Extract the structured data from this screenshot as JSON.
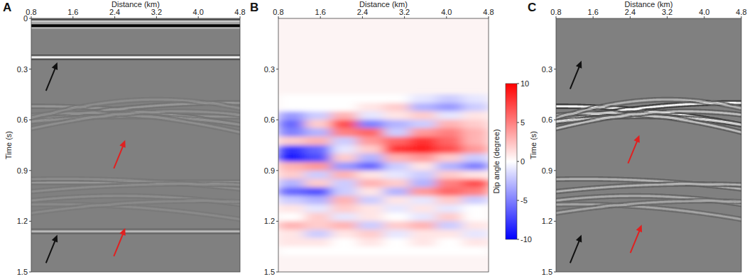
{
  "chart_data": [
    {
      "type": "seismic",
      "panel_label": "A",
      "x_label": "Distance (km)",
      "y_label": "Time (s)",
      "xlim": [
        0.8,
        4.8
      ],
      "xticks": [
        0.8,
        1.6,
        2.4,
        3.2,
        {
          "value": 4,
          "label": "4.0"
        },
        4.8
      ],
      "ylim": [
        0,
        1.5
      ],
      "yticks": [
        0,
        0.3,
        0.6,
        0.9,
        1.2,
        1.5
      ],
      "reflectors": [
        {
          "t": 0.02,
          "amplitude": 1.0
        },
        {
          "t": 0.035,
          "amplitude": -1.0
        },
        {
          "t": 0.045,
          "amplitude": -1.0
        },
        {
          "t": 0.23,
          "amplitude": 0.9
        },
        {
          "t": 0.58,
          "amplitude": 0.15
        },
        {
          "t": 0.97,
          "amplitude": 0.2
        },
        {
          "t": 1.26,
          "amplitude": 0.45
        }
      ],
      "diffractions": [
        {
          "x0": 0.9,
          "t0": 0.52,
          "v": 22,
          "amplitude": 0.18
        },
        {
          "x0": 4.6,
          "t0": 0.5,
          "v": 22,
          "amplitude": 0.18
        },
        {
          "x0": 2.6,
          "t0": 0.58,
          "v": 18,
          "amplitude": 0.12
        },
        {
          "x0": 1.8,
          "t0": 0.56,
          "v": 16,
          "amplitude": 0.12
        },
        {
          "x0": 3.6,
          "t0": 0.55,
          "v": 16,
          "amplitude": 0.12
        },
        {
          "x0": 3.2,
          "t0": 0.48,
          "v": 14,
          "amplitude": 0.1
        },
        {
          "x0": 1.4,
          "t0": 0.95,
          "v": 20,
          "amplitude": 0.1
        },
        {
          "x0": 3.8,
          "t0": 0.98,
          "v": 20,
          "amplitude": 0.1
        },
        {
          "x0": 2.5,
          "t0": 1.05,
          "v": 14,
          "amplitude": 0.1
        },
        {
          "x0": 1.2,
          "t0": 1.1,
          "v": 16,
          "amplitude": 0.08
        },
        {
          "x0": 4.0,
          "t0": 1.08,
          "v": 16,
          "amplitude": 0.08
        }
      ],
      "annotations": [
        {
          "x": 1.3,
          "y": 0.26,
          "color": "#111111"
        },
        {
          "x": 2.6,
          "y": 0.72,
          "color": "#e02020"
        },
        {
          "x": 1.3,
          "y": 1.28,
          "color": "#111111"
        },
        {
          "x": 2.6,
          "y": 1.24,
          "color": "#e02020"
        }
      ]
    },
    {
      "type": "heatmap",
      "panel_label": "B",
      "x_label": "Distance (km)",
      "xlim": [
        0.8,
        4.8
      ],
      "xticks": [
        0.8,
        1.6,
        2.4,
        3.2,
        {
          "value": 4,
          "label": "4.0"
        },
        4.8
      ],
      "ylim": [
        0,
        1.5
      ],
      "yticks": [
        0.3,
        0.6,
        0.9,
        1.2,
        1.5
      ],
      "cells": {
        "x_edges": [
          0.8,
          1.3,
          1.8,
          2.3,
          2.8,
          3.3,
          3.8,
          4.3,
          4.8
        ],
        "t_edges": [
          0.45,
          0.5,
          0.55,
          0.6,
          0.65,
          0.7,
          0.75,
          0.8,
          0.85,
          0.9,
          0.95,
          1.0,
          1.05,
          1.1,
          1.15,
          1.2,
          1.25,
          1.3,
          1.35,
          1.4
        ],
        "values": [
          [
            0,
            0,
            0,
            0,
            0,
            -1,
            -2,
            -1
          ],
          [
            0,
            0,
            0,
            1,
            2,
            -3,
            -4,
            -2
          ],
          [
            -4,
            -2,
            3,
            -1,
            1,
            2,
            -1,
            1
          ],
          [
            -6,
            2,
            7,
            -5,
            -3,
            -2,
            3,
            2
          ],
          [
            -5,
            -3,
            5,
            6,
            -2,
            4,
            5,
            3
          ],
          [
            2,
            3,
            -2,
            4,
            6,
            8,
            6,
            3
          ],
          [
            -8,
            -6,
            -1,
            2,
            8,
            9,
            7,
            4
          ],
          [
            -9,
            -7,
            2,
            -3,
            3,
            4,
            2,
            -2
          ],
          [
            3,
            4,
            -4,
            -6,
            -2,
            1,
            -3,
            -5
          ],
          [
            2,
            -2,
            3,
            1,
            -1,
            -2,
            2,
            1
          ],
          [
            -3,
            2,
            -2,
            3,
            2,
            -3,
            5,
            7
          ],
          [
            -6,
            -7,
            -2,
            1,
            -3,
            4,
            6,
            5
          ],
          [
            -2,
            -3,
            3,
            -2,
            1,
            -1,
            2,
            -2
          ],
          [
            1,
            -1,
            2,
            1,
            -1,
            1,
            -1,
            0
          ],
          [
            0,
            2,
            -1,
            1,
            0,
            -1,
            2,
            0
          ],
          [
            3,
            2,
            3,
            -2,
            2,
            3,
            -2,
            1
          ],
          [
            1,
            -2,
            1,
            2,
            -1,
            1,
            1,
            -1
          ],
          [
            1,
            1,
            0,
            1,
            0,
            1,
            0,
            1
          ],
          [
            0,
            0,
            0,
            0,
            0,
            0,
            0,
            0
          ]
        ]
      },
      "colorbar": {
        "label": "Dip angle (degree)",
        "range": [
          -10,
          10
        ],
        "ticks": [
          -10,
          -5,
          0,
          5,
          10
        ]
      }
    },
    {
      "type": "seismic",
      "panel_label": "C",
      "x_label": "Distance (km)",
      "y_label": "Time (s)",
      "xlim": [
        0.8,
        4.8
      ],
      "xticks": [
        0.8,
        1.6,
        2.4,
        3.2,
        {
          "value": 4,
          "label": "4.0"
        },
        4.8
      ],
      "ylim": [
        0,
        1.5
      ],
      "yticks": [
        0.3,
        0.6,
        0.9,
        1.2,
        1.5
      ],
      "reflectors": [],
      "diffractions": [
        {
          "x0": 0.9,
          "t0": 0.52,
          "v": 22,
          "amplitude": 0.95
        },
        {
          "x0": 4.6,
          "t0": 0.5,
          "v": 22,
          "amplitude": 0.95
        },
        {
          "x0": 2.6,
          "t0": 0.58,
          "v": 18,
          "amplitude": 0.6
        },
        {
          "x0": 1.8,
          "t0": 0.56,
          "v": 16,
          "amplitude": 0.5
        },
        {
          "x0": 3.6,
          "t0": 0.55,
          "v": 16,
          "amplitude": 0.5
        },
        {
          "x0": 3.2,
          "t0": 0.48,
          "v": 14,
          "amplitude": 0.4
        },
        {
          "x0": 1.4,
          "t0": 0.95,
          "v": 20,
          "amplitude": 0.4
        },
        {
          "x0": 3.8,
          "t0": 0.98,
          "v": 20,
          "amplitude": 0.4
        },
        {
          "x0": 2.5,
          "t0": 1.05,
          "v": 14,
          "amplitude": 0.35
        },
        {
          "x0": 1.2,
          "t0": 1.1,
          "v": 16,
          "amplitude": 0.3
        },
        {
          "x0": 4.0,
          "t0": 1.08,
          "v": 16,
          "amplitude": 0.3
        }
      ],
      "annotations": [
        {
          "x": 1.35,
          "y": 0.25,
          "color": "#111111"
        },
        {
          "x": 2.6,
          "y": 0.69,
          "color": "#e02020"
        },
        {
          "x": 1.35,
          "y": 1.28,
          "color": "#111111"
        },
        {
          "x": 2.65,
          "y": 1.22,
          "color": "#e02020"
        }
      ]
    }
  ]
}
